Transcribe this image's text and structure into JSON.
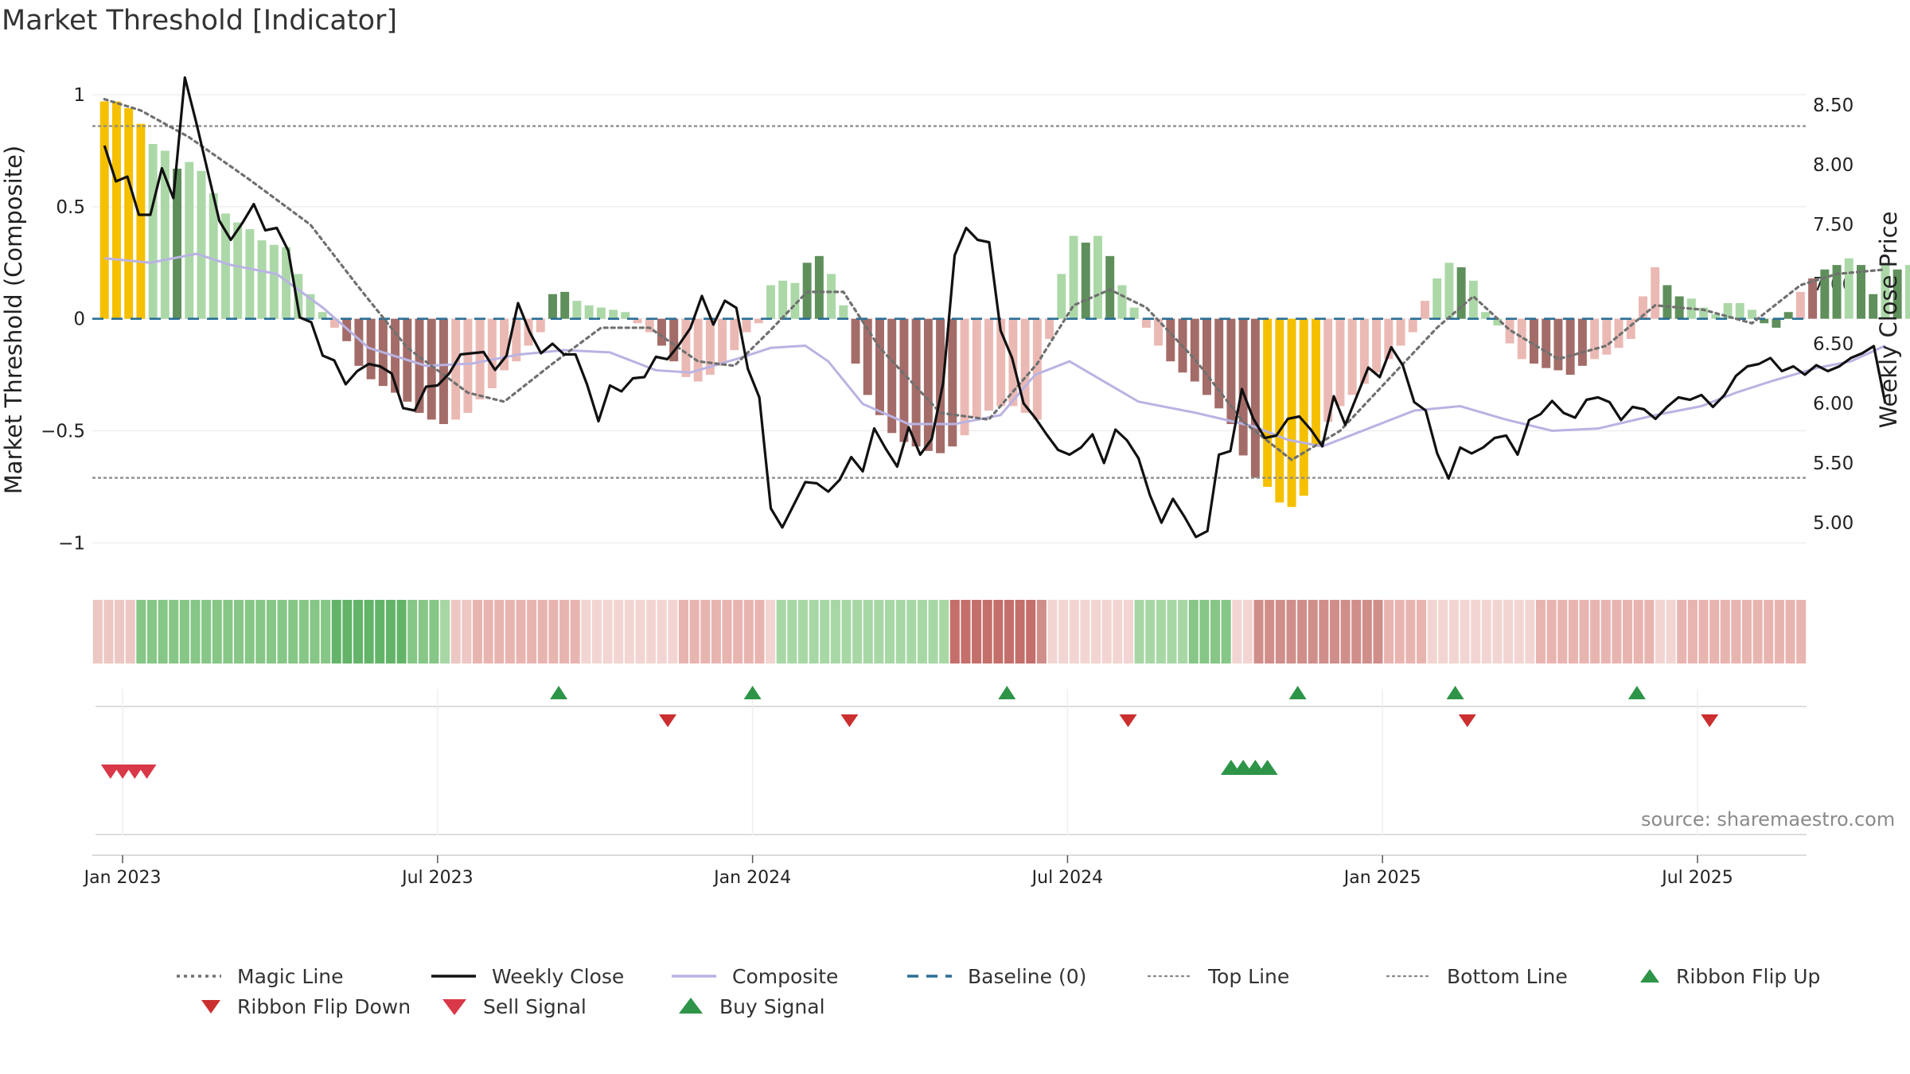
{
  "title": "Market Threshold [Indicator]",
  "source": "source: sharemaestro.com",
  "colors": {
    "weekly_close": "#111111",
    "magic_line": "#707070",
    "composite": "#b9b3e3",
    "baseline": "#2a6f97",
    "top_line": "#8a8a8a",
    "bottom_line": "#8a8a8a",
    "bar_yellow": "#f5c000",
    "bar_green_light": "#acd8a8",
    "bar_green_dark": "#5f8f5b",
    "bar_red_light": "#ebb9b4",
    "bar_red_dark": "#a46c68",
    "flip_up": "#2e9448",
    "flip_down": "#cc2f2f",
    "sell": "#d93848",
    "buy": "#2e9448"
  },
  "chart_data": {
    "type": "bar",
    "title": "Market Threshold [Indicator]",
    "ylabel_left": "Market Threshold (Composite)",
    "ylabel_right": "Weekly Close Price",
    "ylim_left": [
      -1.07,
      1.05
    ],
    "ylim_right": [
      4.7,
      8.68
    ],
    "yticks_left": [
      {
        "v": 1,
        "label": "1"
      },
      {
        "v": 0.5,
        "label": "0.5"
      },
      {
        "v": 0,
        "label": "0"
      },
      {
        "v": -0.5,
        "label": "−0.5"
      },
      {
        "v": -1,
        "label": "−1"
      }
    ],
    "yticks_right": [
      {
        "v": 8.5,
        "label": "8.50"
      },
      {
        "v": 8.0,
        "label": "8.00"
      },
      {
        "v": 7.5,
        "label": "7.50"
      },
      {
        "v": 7.0,
        "label": "7.00"
      },
      {
        "v": 6.5,
        "label": "6.50"
      },
      {
        "v": 6.0,
        "label": "6.00"
      },
      {
        "v": 5.5,
        "label": "5.50"
      },
      {
        "v": 5.0,
        "label": "5.00"
      }
    ],
    "xlim": [
      -1,
      140.5
    ],
    "xticks": [
      {
        "w": 1.5,
        "label": "Jan 2023"
      },
      {
        "w": 27.5,
        "label": "Jul 2023"
      },
      {
        "w": 53.5,
        "label": "Jan 2024"
      },
      {
        "w": 79.5,
        "label": "Jul 2024"
      },
      {
        "w": 105.5,
        "label": "Jan 2025"
      },
      {
        "w": 131.5,
        "label": "Jul 2025"
      }
    ],
    "top_line": 0.86,
    "bottom_line": -0.71,
    "baseline": 0,
    "composite_bars": [
      0.97,
      0.97,
      0.94,
      0.87,
      0.78,
      0.75,
      0.67,
      0.7,
      0.66,
      0.56,
      0.47,
      0.43,
      0.4,
      0.35,
      0.33,
      0.32,
      0.2,
      0.11,
      0.03,
      -0.04,
      -0.1,
      -0.21,
      -0.27,
      -0.3,
      -0.33,
      -0.37,
      -0.42,
      -0.45,
      -0.47,
      -0.45,
      -0.42,
      -0.36,
      -0.31,
      -0.23,
      -0.19,
      -0.12,
      -0.06,
      0.11,
      0.12,
      0.08,
      0.06,
      0.05,
      0.04,
      0.03,
      -0.02,
      -0.06,
      -0.12,
      -0.19,
      -0.26,
      -0.28,
      -0.25,
      -0.21,
      -0.14,
      -0.06,
      -0.02,
      0.15,
      0.17,
      0.16,
      0.25,
      0.28,
      0.2,
      0.06,
      -0.2,
      -0.34,
      -0.43,
      -0.51,
      -0.55,
      -0.57,
      -0.59,
      -0.6,
      -0.57,
      -0.52,
      -0.44,
      -0.41,
      -0.39,
      -0.39,
      -0.42,
      -0.45,
      -0.09,
      0.2,
      0.37,
      0.34,
      0.37,
      0.28,
      0.15,
      0.05,
      -0.04,
      -0.12,
      -0.19,
      -0.24,
      -0.28,
      -0.34,
      -0.4,
      -0.47,
      -0.61,
      -0.71,
      -0.75,
      -0.82,
      -0.84,
      -0.79,
      -0.56,
      -0.46,
      -0.39,
      -0.34,
      -0.29,
      -0.24,
      -0.18,
      -0.12,
      -0.06,
      0.08,
      0.18,
      0.25,
      0.23,
      0.17,
      0.03,
      -0.03,
      -0.11,
      -0.18,
      -0.2,
      -0.22,
      -0.23,
      -0.25,
      -0.21,
      -0.18,
      -0.16,
      -0.13,
      -0.09,
      0.1,
      0.23,
      0.15,
      0.1,
      0.09,
      0.05,
      0.02,
      0.07,
      0.07,
      0.04,
      -0.02,
      -0.04,
      0.03,
      0.12,
      0.18,
      0.22,
      0.24,
      0.27,
      0.24,
      0.11,
      0.25,
      0.22,
      0.24,
      0.27,
      0.11
    ],
    "bar_classes": [
      "Y",
      "Y",
      "Y",
      "Y",
      "G",
      "G",
      "D",
      "G",
      "G",
      "G",
      "G",
      "G",
      "G",
      "G",
      "G",
      "G",
      "G",
      "G",
      "G",
      "r",
      "R",
      "R",
      "R",
      "R",
      "R",
      "R",
      "R",
      "R",
      "R",
      "r",
      "r",
      "r",
      "r",
      "r",
      "r",
      "r",
      "r",
      "D",
      "D",
      "G",
      "G",
      "G",
      "G",
      "G",
      "r",
      "r",
      "R",
      "R",
      "r",
      "r",
      "r",
      "r",
      "r",
      "r",
      "r",
      "G",
      "G",
      "G",
      "D",
      "D",
      "G",
      "G",
      "R",
      "R",
      "R",
      "R",
      "R",
      "R",
      "R",
      "R",
      "R",
      "r",
      "r",
      "r",
      "r",
      "r",
      "r",
      "r",
      "r",
      "G",
      "G",
      "D",
      "G",
      "D",
      "G",
      "G",
      "r",
      "r",
      "R",
      "R",
      "R",
      "R",
      "R",
      "R",
      "R",
      "R",
      "Y",
      "Y",
      "Y",
      "Y",
      "Y",
      "r",
      "r",
      "r",
      "r",
      "r",
      "r",
      "r",
      "r",
      "r",
      "G",
      "G",
      "D",
      "G",
      "G",
      "G",
      "r",
      "r",
      "R",
      "R",
      "R",
      "R",
      "R",
      "r",
      "r",
      "r",
      "r",
      "r",
      "r",
      "D",
      "D",
      "G",
      "G",
      "G",
      "G",
      "G",
      "G",
      "D",
      "D",
      "D",
      "r",
      "R",
      "D",
      "D",
      "G",
      "D",
      "D",
      "G",
      "D",
      "G",
      "D",
      "G",
      "D",
      "G",
      "G",
      "G"
    ],
    "weekly_close": [
      8.16,
      7.86,
      7.9,
      7.58,
      7.58,
      7.97,
      7.72,
      8.73,
      8.35,
      7.94,
      7.53,
      7.37,
      7.51,
      7.67,
      7.45,
      7.47,
      7.28,
      6.72,
      6.68,
      6.4,
      6.36,
      6.16,
      6.27,
      6.33,
      6.31,
      6.25,
      5.96,
      5.94,
      6.14,
      6.15,
      6.25,
      6.41,
      6.42,
      6.43,
      6.28,
      6.4,
      6.84,
      6.6,
      6.42,
      6.5,
      6.41,
      6.41,
      6.16,
      5.85,
      6.15,
      6.1,
      6.21,
      6.22,
      6.39,
      6.37,
      6.49,
      6.63,
      6.9,
      6.66,
      6.86,
      6.8,
      6.29,
      6.05,
      5.12,
      4.96,
      5.15,
      5.34,
      5.33,
      5.26,
      5.36,
      5.55,
      5.43,
      5.79,
      5.62,
      5.47,
      5.8,
      5.57,
      5.7,
      6.17,
      7.24,
      7.47,
      7.37,
      7.35,
      6.61,
      6.38,
      6.0,
      5.88,
      5.74,
      5.61,
      5.57,
      5.63,
      5.74,
      5.5,
      5.78,
      5.69,
      5.54,
      5.23,
      5.0,
      5.2,
      5.05,
      4.88,
      4.93,
      5.57,
      5.6,
      6.12,
      5.87,
      5.71,
      5.73,
      5.87,
      5.89,
      5.78,
      5.64,
      6.06,
      5.82,
      6.06,
      6.3,
      6.22,
      6.47,
      6.32,
      6.01,
      5.94,
      5.58,
      5.37,
      5.63,
      5.58,
      5.63,
      5.71,
      5.73,
      5.57,
      5.86,
      5.91,
      6.02,
      5.92,
      5.88,
      6.03,
      6.05,
      6.01,
      5.86,
      5.97,
      5.95,
      5.87,
      5.97,
      6.05,
      6.03,
      6.07,
      5.97,
      6.07,
      6.23,
      6.31,
      6.33,
      6.38,
      6.27,
      6.31,
      6.24,
      6.32,
      6.27,
      6.31,
      6.38,
      6.42,
      6.48,
      6.0
    ],
    "magic_line": [
      {
        "w": 0,
        "v": 0.98
      },
      {
        "w": 3,
        "v": 0.93
      },
      {
        "w": 7,
        "v": 0.81
      },
      {
        "w": 12,
        "v": 0.62
      },
      {
        "w": 17,
        "v": 0.42
      },
      {
        "w": 21,
        "v": 0.14
      },
      {
        "w": 25,
        "v": -0.13
      },
      {
        "w": 30,
        "v": -0.33
      },
      {
        "w": 33,
        "v": -0.37
      },
      {
        "w": 37,
        "v": -0.2
      },
      {
        "w": 41,
        "v": -0.04
      },
      {
        "w": 45,
        "v": -0.04
      },
      {
        "w": 49,
        "v": -0.19
      },
      {
        "w": 52,
        "v": -0.21
      },
      {
        "w": 55,
        "v": -0.05
      },
      {
        "w": 58,
        "v": 0.12
      },
      {
        "w": 61,
        "v": 0.12
      },
      {
        "w": 64,
        "v": -0.13
      },
      {
        "w": 69,
        "v": -0.42
      },
      {
        "w": 73,
        "v": -0.45
      },
      {
        "w": 77,
        "v": -0.2
      },
      {
        "w": 80,
        "v": 0.06
      },
      {
        "w": 83,
        "v": 0.13
      },
      {
        "w": 86,
        "v": 0.05
      },
      {
        "w": 90,
        "v": -0.18
      },
      {
        "w": 94,
        "v": -0.46
      },
      {
        "w": 98,
        "v": -0.63
      },
      {
        "w": 102,
        "v": -0.5
      },
      {
        "w": 106,
        "v": -0.27
      },
      {
        "w": 110,
        "v": -0.04
      },
      {
        "w": 113,
        "v": 0.1
      },
      {
        "w": 116,
        "v": -0.05
      },
      {
        "w": 120,
        "v": -0.18
      },
      {
        "w": 124,
        "v": -0.12
      },
      {
        "w": 128,
        "v": 0.06
      },
      {
        "w": 132,
        "v": 0.04
      },
      {
        "w": 136,
        "v": -0.02
      },
      {
        "w": 140,
        "v": 0.15
      },
      {
        "w": 143,
        "v": 0.2
      },
      {
        "w": 147,
        "v": 0.22
      }
    ],
    "composite_line": [
      {
        "w": 0,
        "v": 0.27
      },
      {
        "w": 4,
        "v": 0.25
      },
      {
        "w": 8,
        "v": 0.29
      },
      {
        "w": 11,
        "v": 0.24
      },
      {
        "w": 15,
        "v": 0.2
      },
      {
        "w": 19,
        "v": 0.05
      },
      {
        "w": 23,
        "v": -0.13
      },
      {
        "w": 28,
        "v": -0.21
      },
      {
        "w": 32,
        "v": -0.2
      },
      {
        "w": 36,
        "v": -0.16
      },
      {
        "w": 40,
        "v": -0.14
      },
      {
        "w": 44,
        "v": -0.15
      },
      {
        "w": 48,
        "v": -0.23
      },
      {
        "w": 51,
        "v": -0.24
      },
      {
        "w": 55,
        "v": -0.18
      },
      {
        "w": 58,
        "v": -0.13
      },
      {
        "w": 61,
        "v": -0.12
      },
      {
        "w": 63,
        "v": -0.19
      },
      {
        "w": 66,
        "v": -0.38
      },
      {
        "w": 70,
        "v": -0.47
      },
      {
        "w": 74,
        "v": -0.47
      },
      {
        "w": 78,
        "v": -0.43
      },
      {
        "w": 81,
        "v": -0.25
      },
      {
        "w": 84,
        "v": -0.19
      },
      {
        "w": 86,
        "v": -0.25
      },
      {
        "w": 90,
        "v": -0.37
      },
      {
        "w": 95,
        "v": -0.42
      },
      {
        "w": 100,
        "v": -0.48
      },
      {
        "w": 103,
        "v": -0.54
      },
      {
        "w": 106,
        "v": -0.57
      },
      {
        "w": 110,
        "v": -0.49
      },
      {
        "w": 114,
        "v": -0.41
      },
      {
        "w": 118,
        "v": -0.39
      },
      {
        "w": 122,
        "v": -0.45
      },
      {
        "w": 126,
        "v": -0.5
      },
      {
        "w": 130,
        "v": -0.49
      },
      {
        "w": 135,
        "v": -0.43
      },
      {
        "w": 139,
        "v": -0.39
      },
      {
        "w": 142,
        "v": -0.33
      },
      {
        "w": 145,
        "v": -0.28
      },
      {
        "w": 149,
        "v": -0.22
      },
      {
        "w": 152,
        "v": -0.19
      },
      {
        "w": 155,
        "v": -0.12
      }
    ],
    "ribbon": [
      2,
      2,
      2,
      2,
      4,
      4,
      4,
      4,
      4,
      4,
      4,
      4,
      4,
      4,
      4,
      4,
      4,
      4,
      4,
      4,
      4,
      4,
      5,
      5,
      5,
      5,
      5,
      5,
      5,
      4,
      4,
      4,
      3,
      2,
      2,
      -2,
      -2,
      -2,
      -2,
      -2,
      -2,
      -2,
      -2,
      -2,
      -2,
      1,
      1,
      1,
      1,
      1,
      1,
      1,
      1,
      1,
      -2,
      -2,
      -2,
      -2,
      -2,
      -2,
      -2,
      -2,
      1,
      3,
      3,
      3,
      3,
      3,
      3,
      3,
      3,
      3,
      3,
      3,
      3,
      3,
      3,
      3,
      3,
      -4,
      -4,
      -4,
      -4,
      -4,
      -4,
      -4,
      -4,
      -3,
      1,
      1,
      1,
      1,
      1,
      1,
      1,
      1,
      3,
      3,
      3,
      3,
      3,
      4,
      4,
      4,
      4,
      1,
      1,
      -3,
      -3,
      -3,
      -3,
      -3,
      -3,
      -3,
      -3,
      -3,
      -3,
      -3,
      -3,
      -2,
      -2,
      -2,
      -2,
      1,
      1,
      1,
      1,
      1,
      1,
      1,
      1,
      1,
      1,
      -2,
      -2,
      -2,
      -2,
      -2,
      -2,
      -2,
      -2,
      -2,
      -2,
      -2,
      1,
      1,
      -2,
      -2,
      -2,
      -2,
      -2,
      -2,
      -2,
      -2,
      -2,
      -2,
      -2,
      -2
    ],
    "ribbon_flip_up": [
      37.5,
      53.5,
      74.5,
      98.5,
      111.5,
      126.5
    ],
    "ribbon_flip_down": [
      46.5,
      61.5,
      84.5,
      112.5,
      132.5
    ],
    "sell_signal": [
      0.5,
      1.5,
      2.5,
      3.5
    ],
    "buy_signal": [
      93.0,
      94.0,
      95.0,
      96.0
    ]
  },
  "legend": [
    {
      "label": "Magic Line",
      "icon": "dotted-line"
    },
    {
      "label": "Weekly Close",
      "icon": "solid-line"
    },
    {
      "label": "Composite",
      "icon": "lavender-line"
    },
    {
      "label": "Baseline (0)",
      "icon": "dashed-line"
    },
    {
      "label": "Top Line",
      "icon": "dotted-grey-line"
    },
    {
      "label": "Bottom Line",
      "icon": "dotted-grey-line"
    },
    {
      "label": "Ribbon Flip Up",
      "icon": "triangle-up-green"
    },
    {
      "label": "Ribbon Flip Down",
      "icon": "triangle-down-red"
    },
    {
      "label": "Sell Signal",
      "icon": "triangle-down-red"
    },
    {
      "label": "Buy Signal",
      "icon": "triangle-up-green"
    }
  ]
}
